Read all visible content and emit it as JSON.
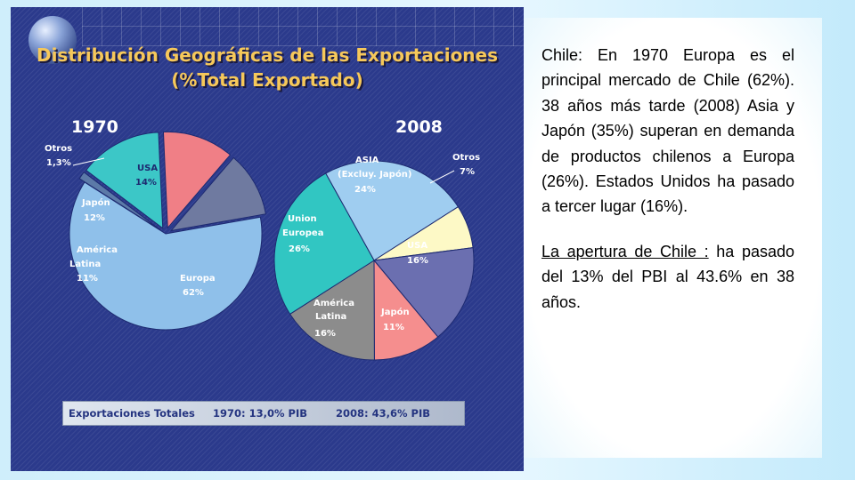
{
  "title_line1": "Distribución Geográficas de las Exportaciones",
  "title_line2": "(%Total Exportado)",
  "chart_data": [
    {
      "type": "pie",
      "year_label": "1970",
      "slices": [
        {
          "label": "Europa",
          "value": 62,
          "value_text": "62%",
          "color": "#8fc0ea"
        },
        {
          "label": "Otros",
          "value": 1.3,
          "value_text": "1,3%",
          "color": "#5c7aa8"
        },
        {
          "label": "USA",
          "value": 14,
          "value_text": "14%",
          "color": "#3cc7c7"
        },
        {
          "label": "Japón",
          "value": 12,
          "value_text": "12%",
          "color": "#f07f86"
        },
        {
          "label": "América Latina",
          "value": 11,
          "value_text": "11%",
          "color": "#6f7aa0"
        }
      ]
    },
    {
      "type": "pie",
      "year_label": "2008",
      "slices": [
        {
          "label": "ASIA (Excluy. Japón)",
          "value": 24,
          "value_text": "24%",
          "color": "#9fcdf0"
        },
        {
          "label": "Otros",
          "value": 7,
          "value_text": "7%",
          "color": "#fdf9c6"
        },
        {
          "label": "USA",
          "value": 16,
          "value_text": "16%",
          "color": "#6b6fb0"
        },
        {
          "label": "Japón",
          "value": 11,
          "value_text": "11%",
          "color": "#f58e8e"
        },
        {
          "label": "América Latina",
          "value": 16,
          "value_text": "16%",
          "color": "#8c8c8c"
        },
        {
          "label": "Unión Europea",
          "value": 26,
          "value_text": "26%",
          "color": "#31c6c2"
        }
      ]
    }
  ],
  "labels": {
    "c1_otros": "Otros",
    "c1_otros_v": "1,3%",
    "c1_usa": "USA",
    "c1_usa_v": "14%",
    "c1_japon": "Japón",
    "c1_japon_v": "12%",
    "c1_amer1": "América",
    "c1_amer2": "Latina",
    "c1_amer_v": "11%",
    "c1_europa": "Europa",
    "c1_europa_v": "62%",
    "c2_asia1": "ASIA",
    "c2_asia2": "(Excluy. Japón)",
    "c2_asia_v": "24%",
    "c2_otros": "Otros",
    "c2_otros_v": "7%",
    "c2_union1": "Union",
    "c2_union2": "Europea",
    "c2_union_v": "26%",
    "c2_usa": "USA",
    "c2_usa_v": "16%",
    "c2_amer1": "América",
    "c2_amer2": "Latina",
    "c2_amer_v": "16%",
    "c2_japon": "Japón",
    "c2_japon_v": "11%"
  },
  "footer": {
    "label": "Exportaciones Totales",
    "y1970": "1970: 13,0% PIB",
    "y2008": "2008: 43,6% PIB"
  },
  "text": {
    "p1_bold": "Chile",
    "p1_rest": ": En 1970 Europa es el principal mercado de Chile (62%). 38 años más tarde (2008) Asia y Japón (35%) superan en demanda de productos chilenos a Europa (26%). Estados Unidos ha pasado a tercer lugar (16%).",
    "p2_underlined": "La apertura de Chile :",
    "p2_rest": " ha pasado del 13% del PBI al 43.6% en 38 años."
  }
}
